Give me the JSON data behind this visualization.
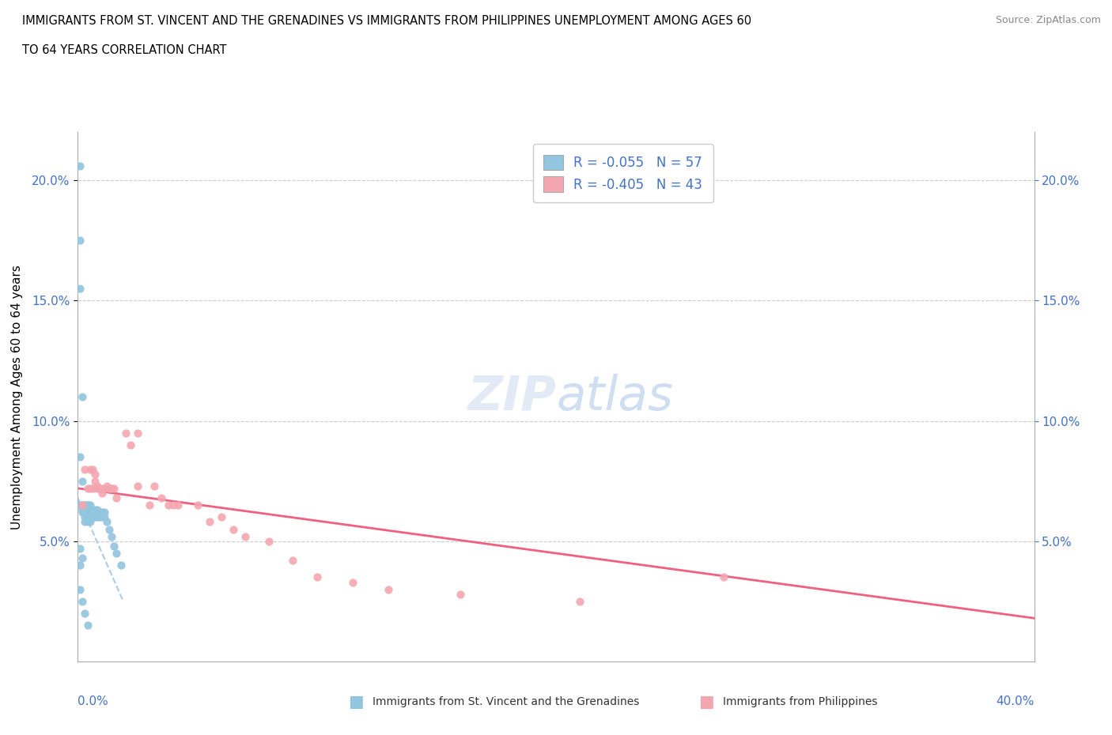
{
  "title_line1": "IMMIGRANTS FROM ST. VINCENT AND THE GRENADINES VS IMMIGRANTS FROM PHILIPPINES UNEMPLOYMENT AMONG AGES 60",
  "title_line2": "TO 64 YEARS CORRELATION CHART",
  "source": "Source: ZipAtlas.com",
  "ylabel": "Unemployment Among Ages 60 to 64 years",
  "xlim": [
    0.0,
    0.4
  ],
  "ylim": [
    0.0,
    0.22
  ],
  "yticks": [
    0.05,
    0.1,
    0.15,
    0.2
  ],
  "ytick_labels": [
    "5.0%",
    "10.0%",
    "15.0%",
    "20.0%"
  ],
  "legend_r1": "R = -0.055   N = 57",
  "legend_r2": "R = -0.405   N = 43",
  "color_blue": "#92C5DE",
  "color_pink": "#F4A6B0",
  "trend_blue_color": "#AACCE8",
  "trend_pink_color": "#F06080",
  "watermark": "ZIPatlas",
  "sv_x": [
    0.001,
    0.001,
    0.001,
    0.001,
    0.001,
    0.002,
    0.002,
    0.002,
    0.002,
    0.002,
    0.002,
    0.003,
    0.003,
    0.003,
    0.003,
    0.003,
    0.003,
    0.003,
    0.004,
    0.004,
    0.004,
    0.004,
    0.004,
    0.004,
    0.005,
    0.005,
    0.005,
    0.005,
    0.005,
    0.006,
    0.006,
    0.006,
    0.007,
    0.007,
    0.007,
    0.008,
    0.008,
    0.008,
    0.009,
    0.009,
    0.01,
    0.01,
    0.011,
    0.011,
    0.012,
    0.013,
    0.014,
    0.015,
    0.016,
    0.018,
    0.001,
    0.001,
    0.002,
    0.003,
    0.004,
    0.001,
    0.002
  ],
  "sv_y": [
    0.206,
    0.175,
    0.155,
    0.085,
    0.065,
    0.11,
    0.075,
    0.065,
    0.065,
    0.063,
    0.062,
    0.065,
    0.065,
    0.063,
    0.062,
    0.062,
    0.06,
    0.058,
    0.065,
    0.065,
    0.063,
    0.062,
    0.06,
    0.058,
    0.065,
    0.063,
    0.062,
    0.06,
    0.058,
    0.063,
    0.062,
    0.06,
    0.063,
    0.062,
    0.06,
    0.063,
    0.062,
    0.06,
    0.062,
    0.06,
    0.062,
    0.06,
    0.062,
    0.06,
    0.058,
    0.055,
    0.052,
    0.048,
    0.045,
    0.04,
    0.04,
    0.03,
    0.025,
    0.02,
    0.015,
    0.047,
    0.043
  ],
  "ph_x": [
    0.002,
    0.003,
    0.004,
    0.005,
    0.005,
    0.006,
    0.006,
    0.007,
    0.007,
    0.008,
    0.008,
    0.009,
    0.01,
    0.01,
    0.011,
    0.012,
    0.013,
    0.014,
    0.015,
    0.016,
    0.02,
    0.022,
    0.025,
    0.025,
    0.03,
    0.032,
    0.035,
    0.038,
    0.04,
    0.042,
    0.05,
    0.055,
    0.06,
    0.065,
    0.07,
    0.08,
    0.09,
    0.1,
    0.115,
    0.13,
    0.16,
    0.21,
    0.27
  ],
  "ph_y": [
    0.065,
    0.08,
    0.072,
    0.072,
    0.08,
    0.072,
    0.08,
    0.078,
    0.075,
    0.073,
    0.072,
    0.072,
    0.07,
    0.072,
    0.072,
    0.073,
    0.072,
    0.072,
    0.072,
    0.068,
    0.095,
    0.09,
    0.095,
    0.073,
    0.065,
    0.073,
    0.068,
    0.065,
    0.065,
    0.065,
    0.065,
    0.058,
    0.06,
    0.055,
    0.052,
    0.05,
    0.042,
    0.035,
    0.033,
    0.03,
    0.028,
    0.025,
    0.035
  ],
  "sv_trend_x": [
    0.0,
    0.019
  ],
  "sv_trend_y": [
    0.068,
    0.025
  ],
  "ph_trend_x": [
    0.0,
    0.4
  ],
  "ph_trend_y": [
    0.072,
    0.018
  ]
}
